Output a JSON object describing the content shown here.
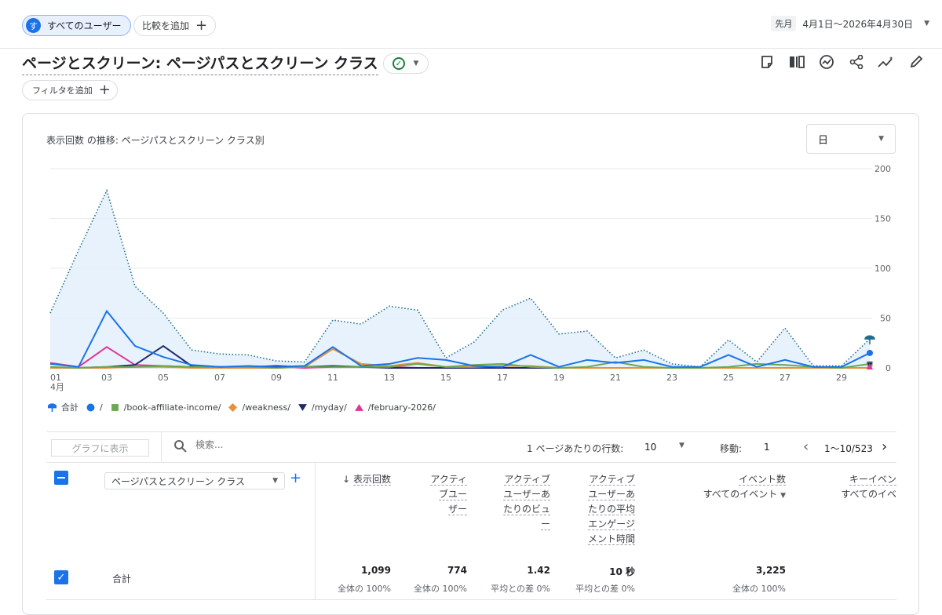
{
  "header": {
    "segment": {
      "avatar": "す",
      "label": "すべてのユーザー"
    },
    "compare_label": "比較を追加",
    "date_tag": "先月",
    "date_range": "4月1日～2026年4月30日"
  },
  "report": {
    "title": "ページとスクリーン: ページパスとスクリーン クラス",
    "filter_label": "フィルタを追加",
    "toolbar_icons": [
      "note-icon",
      "compare-columns-icon",
      "insights-icon",
      "share-icon",
      "trend-icon",
      "edit-icon"
    ]
  },
  "chart_section": {
    "title": "表示回数 の推移: ページパスとスクリーン クラス別",
    "granularity": "日",
    "month_label": "4月"
  },
  "chart_data": {
    "type": "line",
    "x": [
      1,
      2,
      3,
      4,
      5,
      6,
      7,
      8,
      9,
      10,
      11,
      12,
      13,
      14,
      15,
      16,
      17,
      18,
      19,
      20,
      21,
      22,
      23,
      24,
      25,
      26,
      27,
      28,
      29,
      30
    ],
    "x_tick_labels": [
      "01",
      "03",
      "05",
      "07",
      "09",
      "11",
      "13",
      "15",
      "17",
      "19",
      "21",
      "23",
      "25",
      "27",
      "29"
    ],
    "y_ticks": [
      0,
      50,
      100,
      150,
      200
    ],
    "ylim": [
      0,
      200
    ],
    "series": [
      {
        "name": "合計",
        "color": "#1a73e8",
        "style": "dotted-area",
        "values": [
          55,
          118,
          178,
          82,
          55,
          18,
          14,
          13,
          7,
          6,
          48,
          44,
          62,
          58,
          10,
          26,
          58,
          70,
          34,
          37,
          10,
          18,
          4,
          1,
          28,
          6,
          40,
          2,
          2,
          29
        ]
      },
      {
        "name": "/",
        "color": "#1a73e8",
        "style": "line",
        "values": [
          4,
          1,
          57,
          22,
          11,
          3,
          1,
          2,
          1,
          2,
          21,
          2,
          4,
          10,
          8,
          2,
          1,
          13,
          1,
          8,
          5,
          8,
          1,
          1,
          13,
          1,
          8,
          1,
          1,
          15
        ]
      },
      {
        "name": "/book-affiliate-income/",
        "color": "#6aa84f",
        "style": "line",
        "values": [
          1,
          0,
          1,
          1,
          2,
          1,
          1,
          1,
          0,
          1,
          1,
          1,
          1,
          4,
          1,
          3,
          4,
          1,
          0,
          1,
          6,
          1,
          0,
          0,
          1,
          4,
          3,
          1,
          0,
          4
        ]
      },
      {
        "name": "/weakness/",
        "color": "#e69138",
        "style": "line",
        "values": [
          0,
          0,
          0,
          1,
          1,
          0,
          0,
          0,
          0,
          1,
          19,
          4,
          2,
          5,
          1,
          1,
          2,
          2,
          0,
          0,
          0,
          0,
          0,
          0,
          0,
          0,
          0,
          0,
          0,
          0
        ]
      },
      {
        "name": "/myday/",
        "color": "#1f2a6b",
        "style": "line",
        "values": [
          0,
          0,
          1,
          3,
          22,
          2,
          1,
          1,
          2,
          1,
          2,
          1,
          0,
          0,
          0,
          0,
          0,
          0,
          0,
          0,
          0,
          0,
          0,
          0,
          0,
          0,
          0,
          0,
          0,
          0
        ]
      },
      {
        "name": "/february-2026/",
        "color": "#e2339a",
        "style": "line",
        "values": [
          5,
          1,
          21,
          3,
          2,
          1,
          1,
          0,
          1,
          0,
          1,
          1,
          1,
          0,
          0,
          0,
          0,
          0,
          0,
          0,
          0,
          0,
          0,
          0,
          0,
          0,
          0,
          0,
          0,
          0
        ]
      }
    ]
  },
  "legend": [
    {
      "name": "合計",
      "marker": "pin-icon",
      "color": "#1a73e8"
    },
    {
      "name": "/",
      "marker": "circle",
      "color": "#1a73e8"
    },
    {
      "name": "/book-affiliate-income/",
      "marker": "square",
      "color": "#6aa84f"
    },
    {
      "name": "/weakness/",
      "marker": "diamond",
      "color": "#e69138"
    },
    {
      "name": "/myday/",
      "marker": "triangle-down",
      "color": "#1f2a6b"
    },
    {
      "name": "/february-2026/",
      "marker": "triangle-up",
      "color": "#e2339a"
    }
  ],
  "table_toolbar": {
    "graph_button": "グラフに表示",
    "search_placeholder": "検索...",
    "rows_label": "1 ページあたりの行数:",
    "rows_value": "10",
    "move_label": "移動:",
    "move_value": "1",
    "range": "1〜10/523"
  },
  "table": {
    "dimension": "ページパスとスクリーン クラス",
    "metrics": [
      {
        "lines": [
          "表示回数"
        ],
        "sort": "↓"
      },
      {
        "lines": [
          "アクティ",
          "ブユー",
          "ザー"
        ]
      },
      {
        "lines": [
          "アクティブ",
          "ユーザーあ",
          "たりのビュ",
          "ー"
        ]
      },
      {
        "lines": [
          "アクティブ",
          "ユーザーあ",
          "たりの平均",
          "エンゲージ",
          "メント時間"
        ]
      },
      {
        "lines": [
          "イベント数"
        ],
        "sub": "すべてのイベント"
      },
      {
        "lines": [
          "キーイベン"
        ],
        "sub": "すべてのイベ"
      }
    ],
    "total": {
      "label": "合計",
      "values": [
        "1,099",
        "774",
        "1.42",
        "10 秒",
        "3,225",
        ""
      ],
      "subs": [
        "全体の 100%",
        "全体の 100%",
        "平均との差 0%",
        "平均との差 0%",
        "全体の 100%",
        ""
      ]
    }
  }
}
